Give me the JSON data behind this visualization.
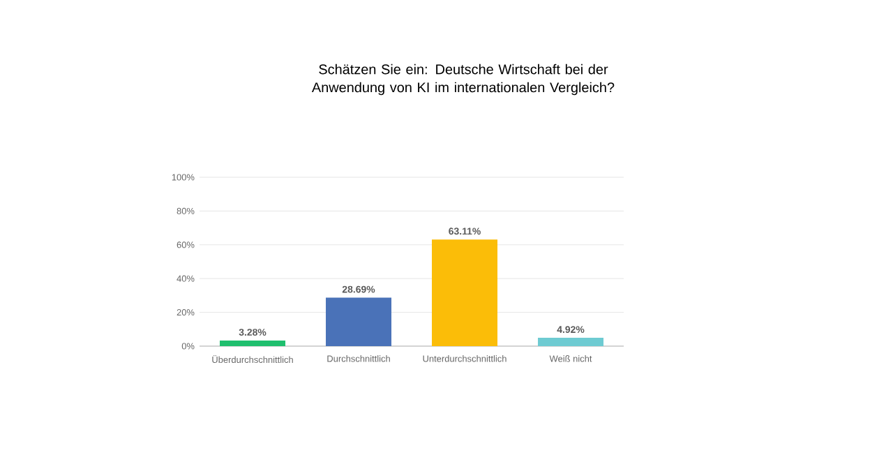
{
  "chart_data": {
    "type": "bar",
    "title": "Schätzen Sie ein: Deutsche Wirtschaft bei der Anwendung von KI im internationalen Vergleich?",
    "categories": [
      "Überdurchschnittlich",
      "Durchschnittlich",
      "Unterdurchschnittlich",
      "Weiß nicht"
    ],
    "values": [
      3.28,
      28.69,
      63.11,
      4.92
    ],
    "colors": [
      "#1fbf6e",
      "#4a72b8",
      "#fbbd08",
      "#6ecbd2"
    ],
    "value_labels": [
      "3.28%",
      "28.69%",
      "63.11%",
      "4.92%"
    ],
    "ylim": [
      0,
      100
    ],
    "yticks": [
      {
        "value": 0,
        "label": "0%"
      },
      {
        "value": 20,
        "label": "20%"
      },
      {
        "value": 40,
        "label": "40%"
      },
      {
        "value": 60,
        "label": "60%"
      },
      {
        "value": 80,
        "label": "80%"
      },
      {
        "value": 100,
        "label": "100%"
      }
    ],
    "grid": "y"
  }
}
